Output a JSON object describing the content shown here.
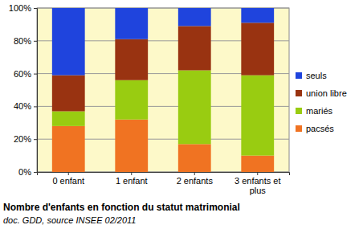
{
  "chart_data": {
    "type": "bar",
    "stacked": true,
    "title": "Nombre d'enfants en fonction du statut matrimonial",
    "subtitle": "doc. GDD, source INSEE 02/2011",
    "categories": [
      "0 enfant",
      "1 enfant",
      "2 enfants",
      "3 enfants et plus"
    ],
    "series": [
      {
        "name": "pacsés",
        "color": "#f07322",
        "values": [
          28,
          32,
          17,
          10
        ]
      },
      {
        "name": "mariés",
        "color": "#99cc11",
        "values": [
          9,
          24,
          45,
          49
        ]
      },
      {
        "name": "union libre",
        "color": "#993311",
        "values": [
          22,
          25,
          27,
          32
        ]
      },
      {
        "name": "seuls",
        "color": "#1f44dd",
        "values": [
          41,
          19,
          11,
          9
        ]
      }
    ],
    "ylim": [
      0,
      100
    ],
    "yticks": [
      {
        "value": 0,
        "label": "0%"
      },
      {
        "value": 20,
        "label": "20%"
      },
      {
        "value": 40,
        "label": "40%"
      },
      {
        "value": 60,
        "label": "60%"
      },
      {
        "value": 80,
        "label": "80%"
      },
      {
        "value": 100,
        "label": "100%"
      }
    ],
    "grid": true,
    "legend": "right"
  }
}
